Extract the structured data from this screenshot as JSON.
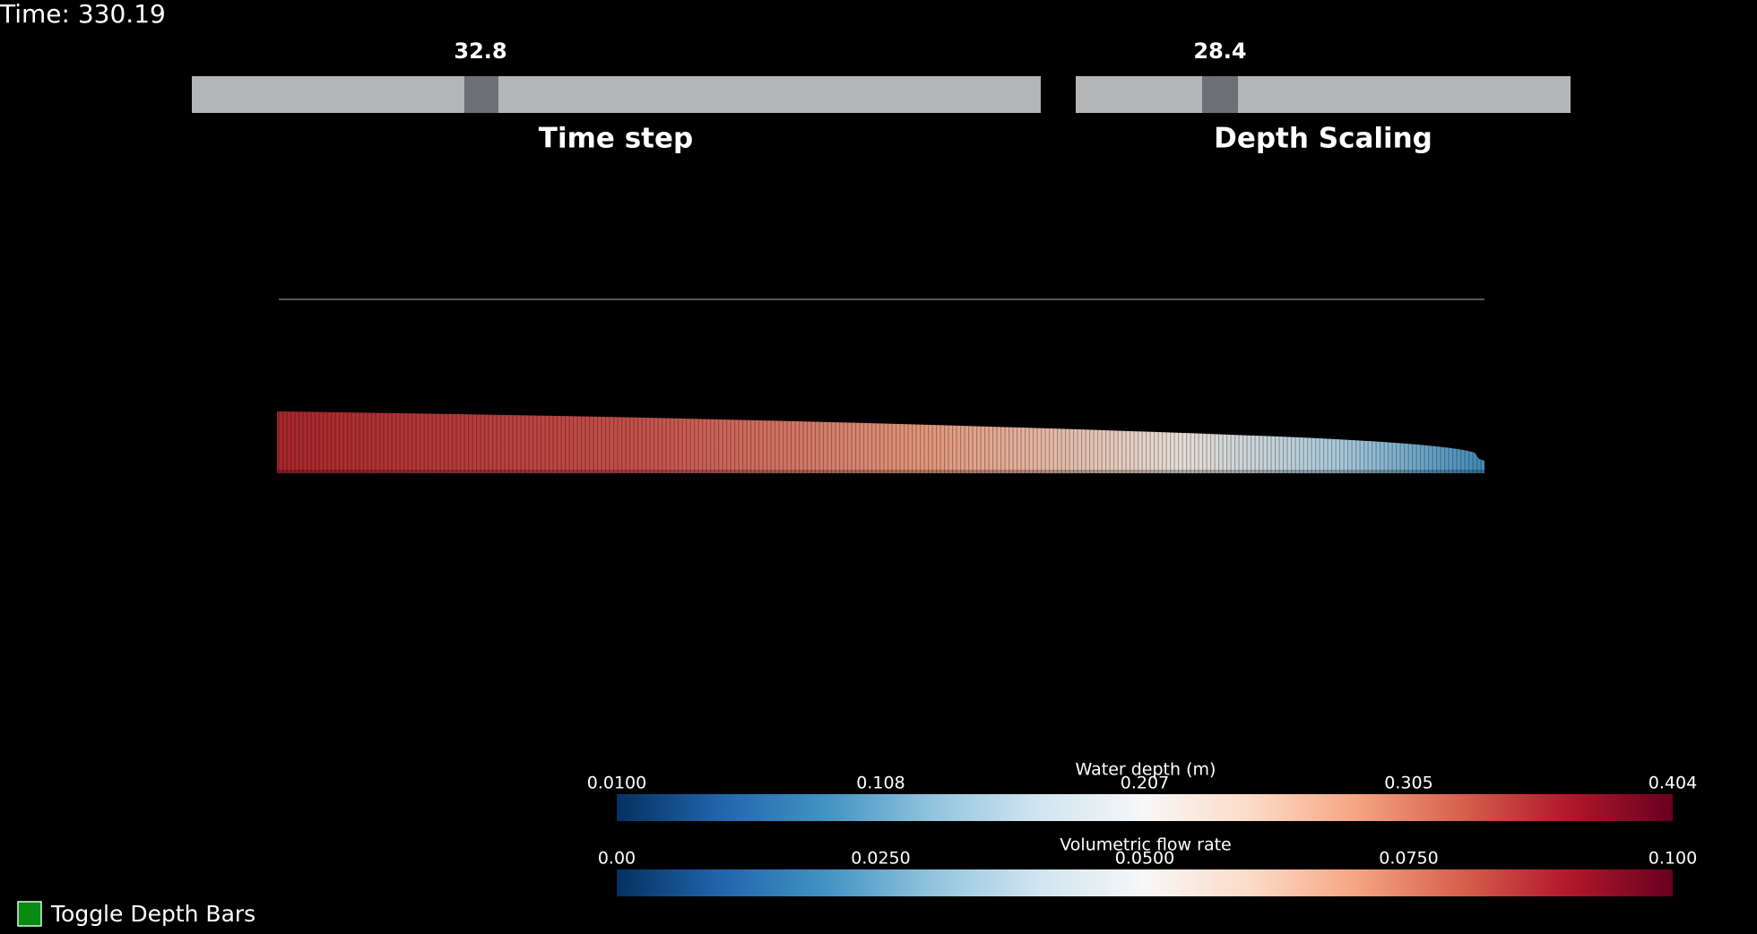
{
  "time_label": "Time: 330.19",
  "sliders": [
    {
      "value": "32.8",
      "label": "Time step"
    },
    {
      "value": "28.4",
      "label": "Depth Scaling"
    }
  ],
  "colorbars": [
    {
      "title": "Water depth (m)",
      "ticks": [
        "0.0100",
        "0.108",
        "0.207",
        "0.305",
        "0.404"
      ]
    },
    {
      "title": "Volumetric flow rate",
      "ticks": [
        "0.00",
        "0.0250",
        "0.0500",
        "0.0750",
        "0.100"
      ]
    }
  ],
  "toggle": {
    "label": "Toggle Depth Bars"
  }
}
